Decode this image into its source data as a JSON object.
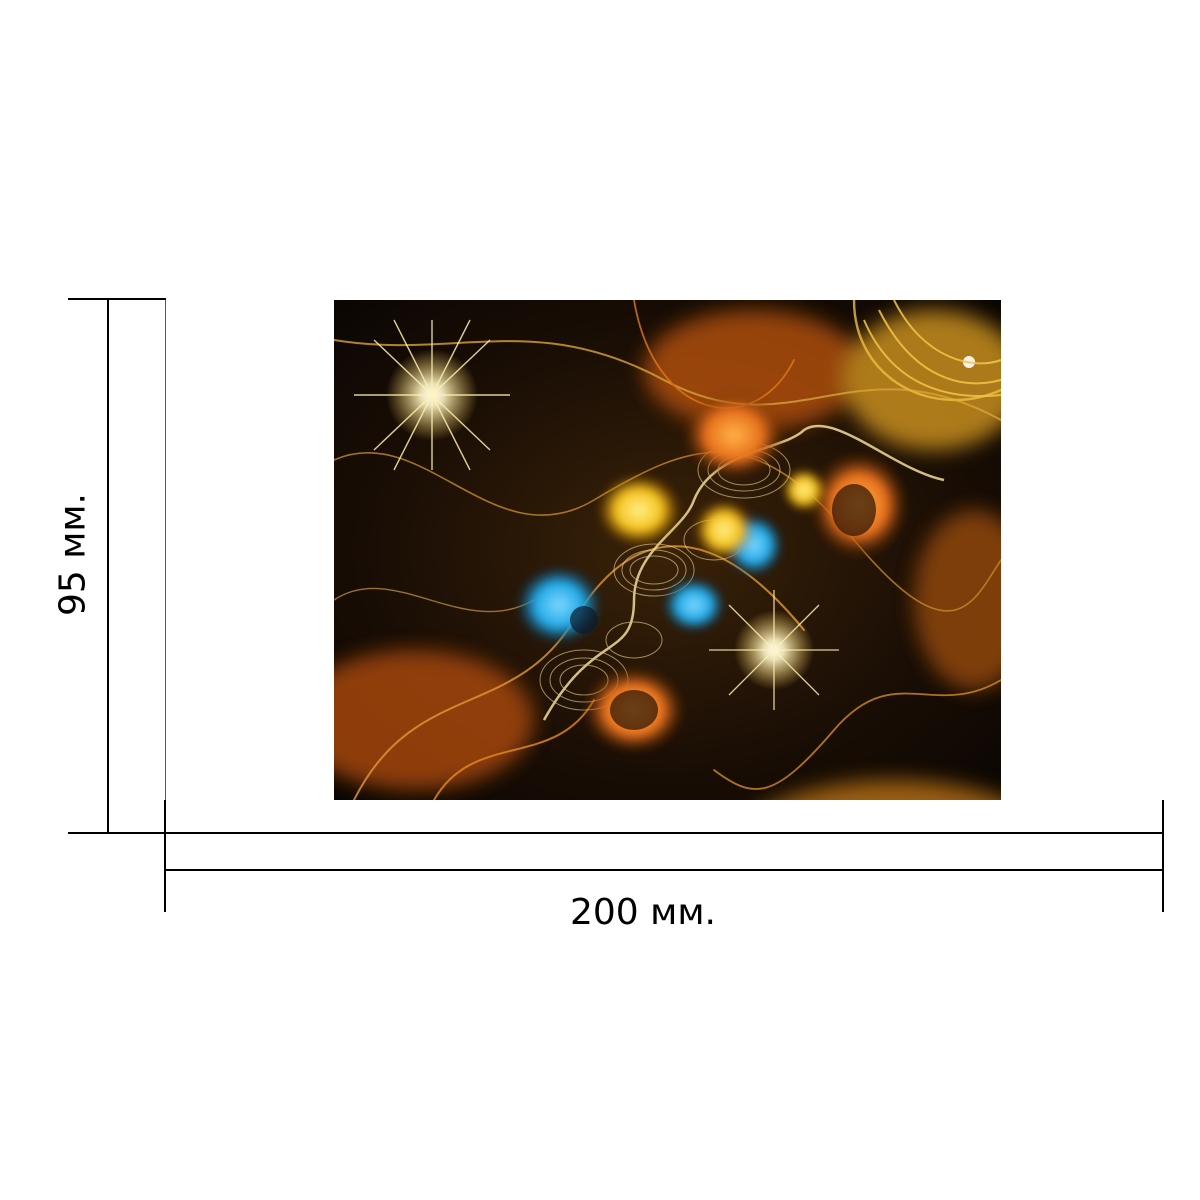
{
  "dimensions": {
    "height_label": "95 мм.",
    "width_label": "200 мм."
  },
  "artwork": {
    "subject": "abstract-fractal-flame",
    "colors": {
      "background": "#120a05",
      "gold": "#f3c64a",
      "orange": "#e8831c",
      "amber": "#f5a623",
      "blue": "#1ea8e6",
      "glow": "#fff6c8"
    }
  }
}
